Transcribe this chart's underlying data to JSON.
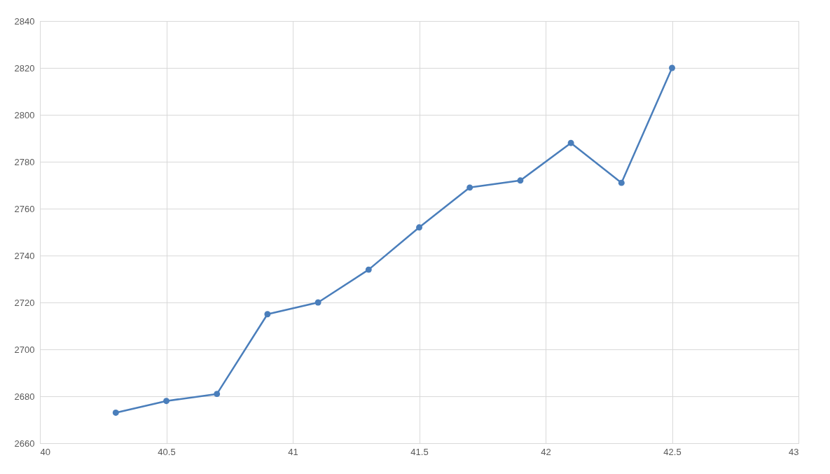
{
  "chart_data": {
    "type": "line",
    "x": [
      40.3,
      40.5,
      40.7,
      40.9,
      41.1,
      41.3,
      41.5,
      41.7,
      41.9,
      42.1,
      42.3,
      42.5
    ],
    "series": [
      {
        "color": "#4a7ebb",
        "values": [
          2673,
          2678,
          2681,
          2715,
          2720,
          2734,
          2752,
          2769,
          2772,
          2788,
          2771,
          2820
        ]
      }
    ],
    "xlim": [
      40,
      43
    ],
    "xticks": [
      40,
      40.5,
      41,
      41.5,
      42,
      42.5,
      43
    ],
    "ylim": [
      2660,
      2840
    ],
    "yticks": [
      2660,
      2680,
      2700,
      2720,
      2740,
      2760,
      2780,
      2800,
      2820,
      2840
    ],
    "grid": true,
    "marker": "circle",
    "line_style": "solid"
  }
}
